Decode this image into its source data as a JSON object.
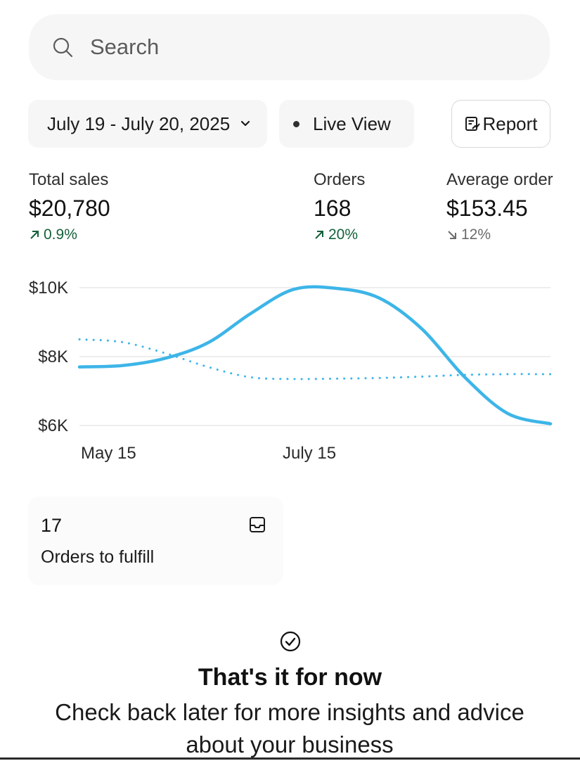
{
  "search": {
    "placeholder": "Search",
    "icon": "search-icon"
  },
  "filters": {
    "date_range": "July 19 - July 20, 2025",
    "live_view": "Live View",
    "report": "Report"
  },
  "metrics": [
    {
      "label": "Total sales",
      "value": "$20,780",
      "change": "0.9%",
      "direction": "up"
    },
    {
      "label": "Orders",
      "value": "168",
      "change": "20%",
      "direction": "up"
    },
    {
      "label": "Average order",
      "value": "$153.45",
      "change": "12%",
      "direction": "down"
    }
  ],
  "chart_data": {
    "type": "line",
    "y_ticks": [
      "$10K",
      "$8K",
      "$6K"
    ],
    "ylim": [
      6000,
      10000
    ],
    "x_tick_labels": [
      "May 15",
      "July 15"
    ],
    "grid": true,
    "series": [
      {
        "style": "solid",
        "color": "#3db5e8",
        "values": [
          7700,
          7740,
          7950,
          8400,
          9250,
          9950,
          9980,
          9700,
          8800,
          7400,
          6350,
          6050
        ]
      },
      {
        "style": "dotted",
        "color": "#3db5e8",
        "values": [
          8500,
          8420,
          8100,
          7700,
          7400,
          7350,
          7360,
          7380,
          7420,
          7470,
          7490,
          7490
        ]
      }
    ]
  },
  "fulfill": {
    "count": "17",
    "label": "Orders to fulfill",
    "icon": "inbox-icon"
  },
  "empty_state": {
    "icon": "check-circle-icon",
    "title": "That's it for now",
    "subtitle": "Check back later for more insights and advice about your business"
  },
  "colors": {
    "up": "#14613a",
    "down": "#6b6b6b",
    "line": "#3db5e8",
    "pill_bg": "#f6f6f6"
  }
}
